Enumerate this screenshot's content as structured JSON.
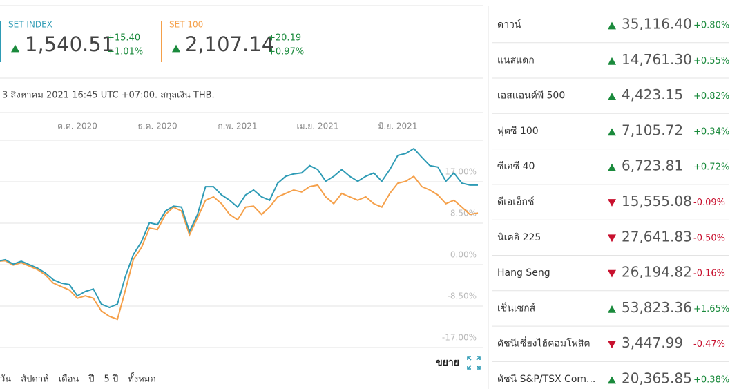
{
  "quotes": [
    {
      "value": "1,540.51",
      "change": "+15.40",
      "change_pct": "+1.01%"
    },
    {
      "value": "2,107.14",
      "change": "+20.19",
      "change_pct": "+0.97%"
    }
  ],
  "timestamp": "3 สิงหาคม 2021 16:45 UTC +07:00. สกุลเงิน THB.",
  "expand": "ขยาย",
  "ranges": [
    "วัน",
    "สัปดาห์",
    "เดือน",
    "ปี",
    "5 ปี",
    "ทั้งหมด"
  ],
  "markets": [
    {
      "name": "ดาวน์",
      "value": "35,116.40",
      "change": "+0.80%"
    },
    {
      "name": "แนสแดก",
      "value": "14,761.30",
      "change": "+0.55%"
    },
    {
      "name": "เอสแอนด์พี 500",
      "value": "4,423.15",
      "change": "+0.82%"
    },
    {
      "name": "ฟุตซี 100",
      "value": "7,105.72",
      "change": "+0.34%"
    },
    {
      "name": "ซีเอซี 40",
      "value": "6,723.81",
      "change": "+0.72%"
    },
    {
      "name": "ดีเอเอ็กซ์",
      "value": "15,555.08",
      "change": "-0.09%"
    },
    {
      "name": "นิเคอิ 225",
      "value": "27,641.83",
      "change": "-0.50%"
    },
    {
      "name": "Hang Seng",
      "value": "26,194.82",
      "change": "-0.16%"
    },
    {
      "name": "เซ็นเซกส์",
      "value": "53,823.36",
      "change": "+1.65%"
    },
    {
      "name": "ดัชนีเซี่ยงไฮ้คอมโพสิต",
      "value": "3,447.99",
      "change": "-0.47%"
    },
    {
      "name": "ดัชนี S&P/TSX Com...",
      "value": "20,365.85",
      "change": "+0.38%"
    }
  ],
  "chart_data": {
    "type": "line",
    "categories": [
      null,
      null,
      null,
      null,
      null,
      null,
      null,
      null,
      null,
      null,
      "ต.ค. 2020",
      null,
      null,
      null,
      null,
      null,
      null,
      null,
      null,
      null,
      "ธ.ค. 2020",
      null,
      null,
      null,
      null,
      null,
      null,
      null,
      null,
      null,
      "ก.พ. 2021",
      null,
      null,
      null,
      null,
      null,
      null,
      null,
      null,
      null,
      "เม.ย. 2021",
      null,
      null,
      null,
      null,
      null,
      null,
      null,
      null,
      null,
      "มิ.ย. 2021",
      null,
      null,
      null,
      null,
      null,
      null,
      null,
      null,
      null,
      null
    ],
    "series": [
      {
        "name": "SET INDEX",
        "color": "#2e9bb5",
        "values": [
          0.7,
          1.0,
          0.1,
          0.7,
          0.0,
          -0.7,
          -1.7,
          -3.1,
          -3.8,
          -4.1,
          -6.4,
          -5.5,
          -5.0,
          -8.1,
          -8.8,
          -8.1,
          -2.4,
          2.1,
          4.7,
          8.6,
          8.2,
          11.0,
          12.0,
          11.8,
          6.8,
          10.3,
          16.0,
          16.0,
          14.3,
          13.2,
          11.8,
          14.3,
          15.3,
          13.9,
          13.2,
          16.7,
          18.1,
          18.6,
          18.8,
          20.3,
          19.5,
          17.1,
          18.1,
          19.5,
          18.1,
          17.1,
          18.1,
          18.8,
          17.1,
          19.5,
          22.4,
          22.8,
          23.8,
          22.0,
          20.3,
          20.0,
          17.1,
          18.8,
          16.7,
          16.3,
          16.3
        ]
      },
      {
        "name": "SET 100",
        "color": "#f5a04a",
        "values": [
          0.7,
          0.8,
          -0.1,
          0.4,
          -0.3,
          -1.0,
          -2.1,
          -3.8,
          -4.5,
          -5.2,
          -6.9,
          -6.4,
          -6.9,
          -9.5,
          -10.6,
          -11.2,
          -5.2,
          1.1,
          3.5,
          7.5,
          7.2,
          10.3,
          11.8,
          11.0,
          6.1,
          9.6,
          13.2,
          13.9,
          12.5,
          10.3,
          9.2,
          11.8,
          12.0,
          10.3,
          11.8,
          13.9,
          14.6,
          15.3,
          14.9,
          16.0,
          16.3,
          13.9,
          12.5,
          14.6,
          13.9,
          13.2,
          13.9,
          12.5,
          11.8,
          14.6,
          16.7,
          17.1,
          18.1,
          16.0,
          15.3,
          14.3,
          12.5,
          13.2,
          11.8,
          10.3,
          10.6
        ]
      }
    ],
    "ylim": [
      -17,
      25.5
    ],
    "yticks": [
      {
        "value": 17,
        "label": "17.00%"
      },
      {
        "value": 8.5,
        "label": "8.50%"
      },
      {
        "value": 0,
        "label": "0.00%"
      },
      {
        "value": -8.5,
        "label": "-8.50%"
      },
      {
        "value": -17,
        "label": "-17.00%"
      }
    ],
    "grid": true
  }
}
